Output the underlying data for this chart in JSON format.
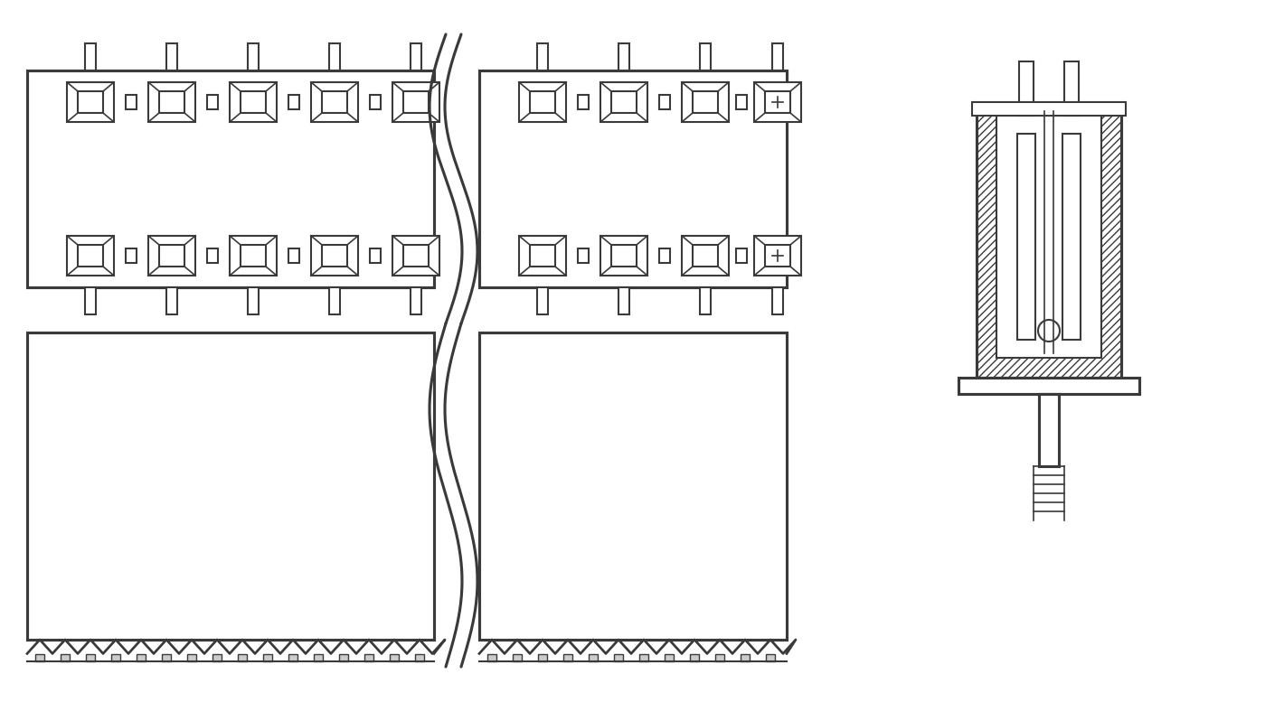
{
  "bg_color": "#ffffff",
  "line_color": "#3a3a3a",
  "line_width": 1.5,
  "fig_width": 14.2,
  "fig_height": 7.98
}
